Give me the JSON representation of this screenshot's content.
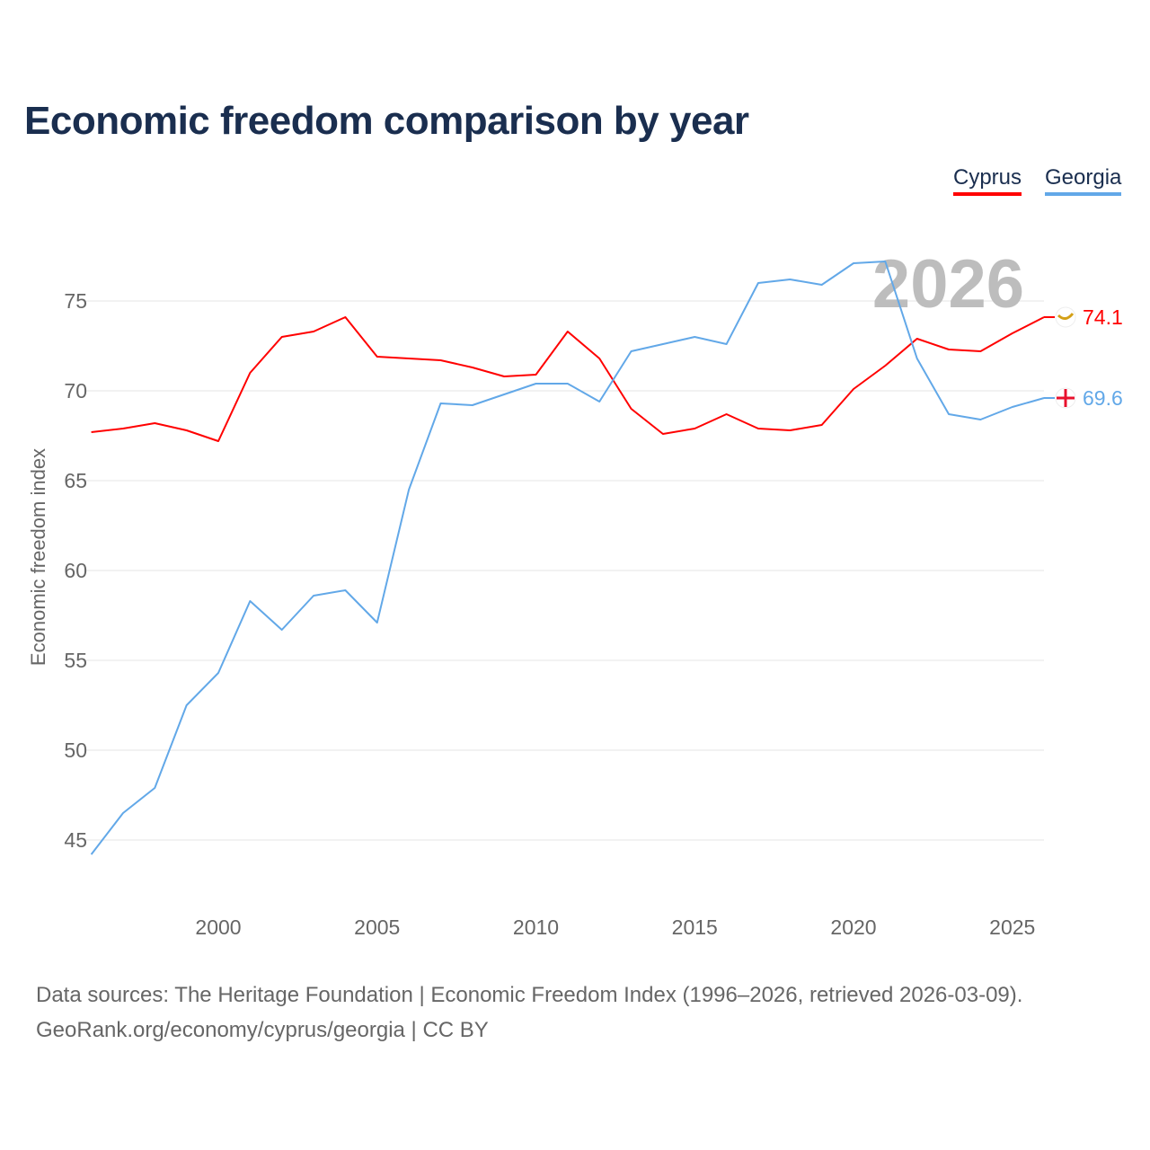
{
  "title": "Economic freedom comparison by year",
  "source_line1": "Data sources: The Heritage Foundation | Economic Freedom Index (1996–2026, retrieved 2026-03-09).",
  "source_line2": "GeoRank.org/economy/cyprus/georgia | CC BY",
  "chart_data": {
    "type": "line",
    "title": "Economic freedom comparison by year",
    "xlabel": "",
    "ylabel": "Economic freedom index",
    "xlim": [
      1996,
      2026
    ],
    "ylim": [
      41,
      79
    ],
    "xticks": [
      2000,
      2005,
      2010,
      2015,
      2020,
      2025
    ],
    "yticks": [
      45,
      50,
      55,
      60,
      65,
      70,
      75
    ],
    "grid": true,
    "legend_placement": "top-right",
    "year_watermark": "2026",
    "x": [
      1996,
      1997,
      1998,
      1999,
      2000,
      2001,
      2002,
      2003,
      2004,
      2005,
      2006,
      2007,
      2008,
      2009,
      2010,
      2011,
      2012,
      2013,
      2014,
      2015,
      2016,
      2017,
      2018,
      2019,
      2020,
      2021,
      2022,
      2023,
      2024,
      2025,
      2026
    ],
    "series": [
      {
        "name": "Cyprus",
        "color": "#ff0000",
        "end_label": "74.1",
        "values": [
          67.7,
          67.9,
          68.2,
          67.8,
          67.2,
          71.0,
          73.0,
          73.3,
          74.1,
          71.9,
          71.8,
          71.7,
          71.3,
          70.8,
          70.9,
          73.3,
          71.8,
          69.0,
          67.6,
          67.9,
          68.7,
          67.9,
          67.8,
          68.1,
          70.1,
          71.4,
          72.9,
          72.3,
          72.2,
          73.2,
          74.1
        ]
      },
      {
        "name": "Georgia",
        "color": "#62a8e8",
        "end_label": "69.6",
        "values": [
          44.2,
          46.5,
          47.9,
          52.5,
          54.3,
          58.3,
          56.7,
          58.6,
          58.9,
          57.1,
          64.5,
          69.3,
          69.2,
          69.8,
          70.4,
          70.4,
          69.4,
          72.2,
          72.6,
          73.0,
          72.6,
          76.0,
          76.2,
          75.9,
          77.1,
          77.2,
          71.8,
          68.7,
          68.4,
          69.1,
          69.6
        ]
      }
    ]
  }
}
